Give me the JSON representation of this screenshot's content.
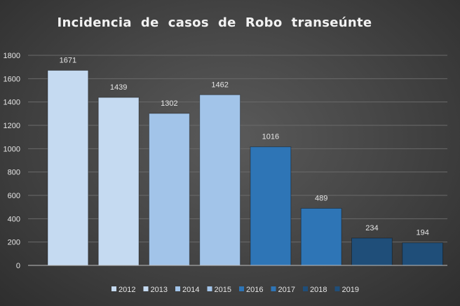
{
  "chart_data": {
    "type": "bar",
    "title": "Incidencia  de  casos  de  Robo  transeúnte",
    "categories": [
      "2012",
      "2013",
      "2014",
      "2015",
      "2016",
      "2017",
      "2018",
      "2019"
    ],
    "values": [
      1671,
      1439,
      1302,
      1462,
      1016,
      489,
      234,
      194
    ],
    "data_labels": [
      "1671",
      "1439",
      "1302",
      "1462",
      "1016",
      "489",
      "234",
      "194"
    ],
    "colors": [
      "#c5daf1",
      "#c5daf1",
      "#a2c4e9",
      "#a2c4e9",
      "#2e75b6",
      "#2e75b6",
      "#1f4e79",
      "#1f4e79"
    ],
    "yticks": [
      "0",
      "200",
      "400",
      "600",
      "800",
      "1000",
      "1200",
      "1400",
      "1600",
      "1800"
    ],
    "ylim": [
      0,
      1800
    ],
    "xlabel": "",
    "ylabel": "",
    "grid": true,
    "legend": {
      "position": "bottom",
      "entries": [
        "2012",
        "2013",
        "2014",
        "2015",
        "2016",
        "2017",
        "2018",
        "2019"
      ]
    }
  }
}
